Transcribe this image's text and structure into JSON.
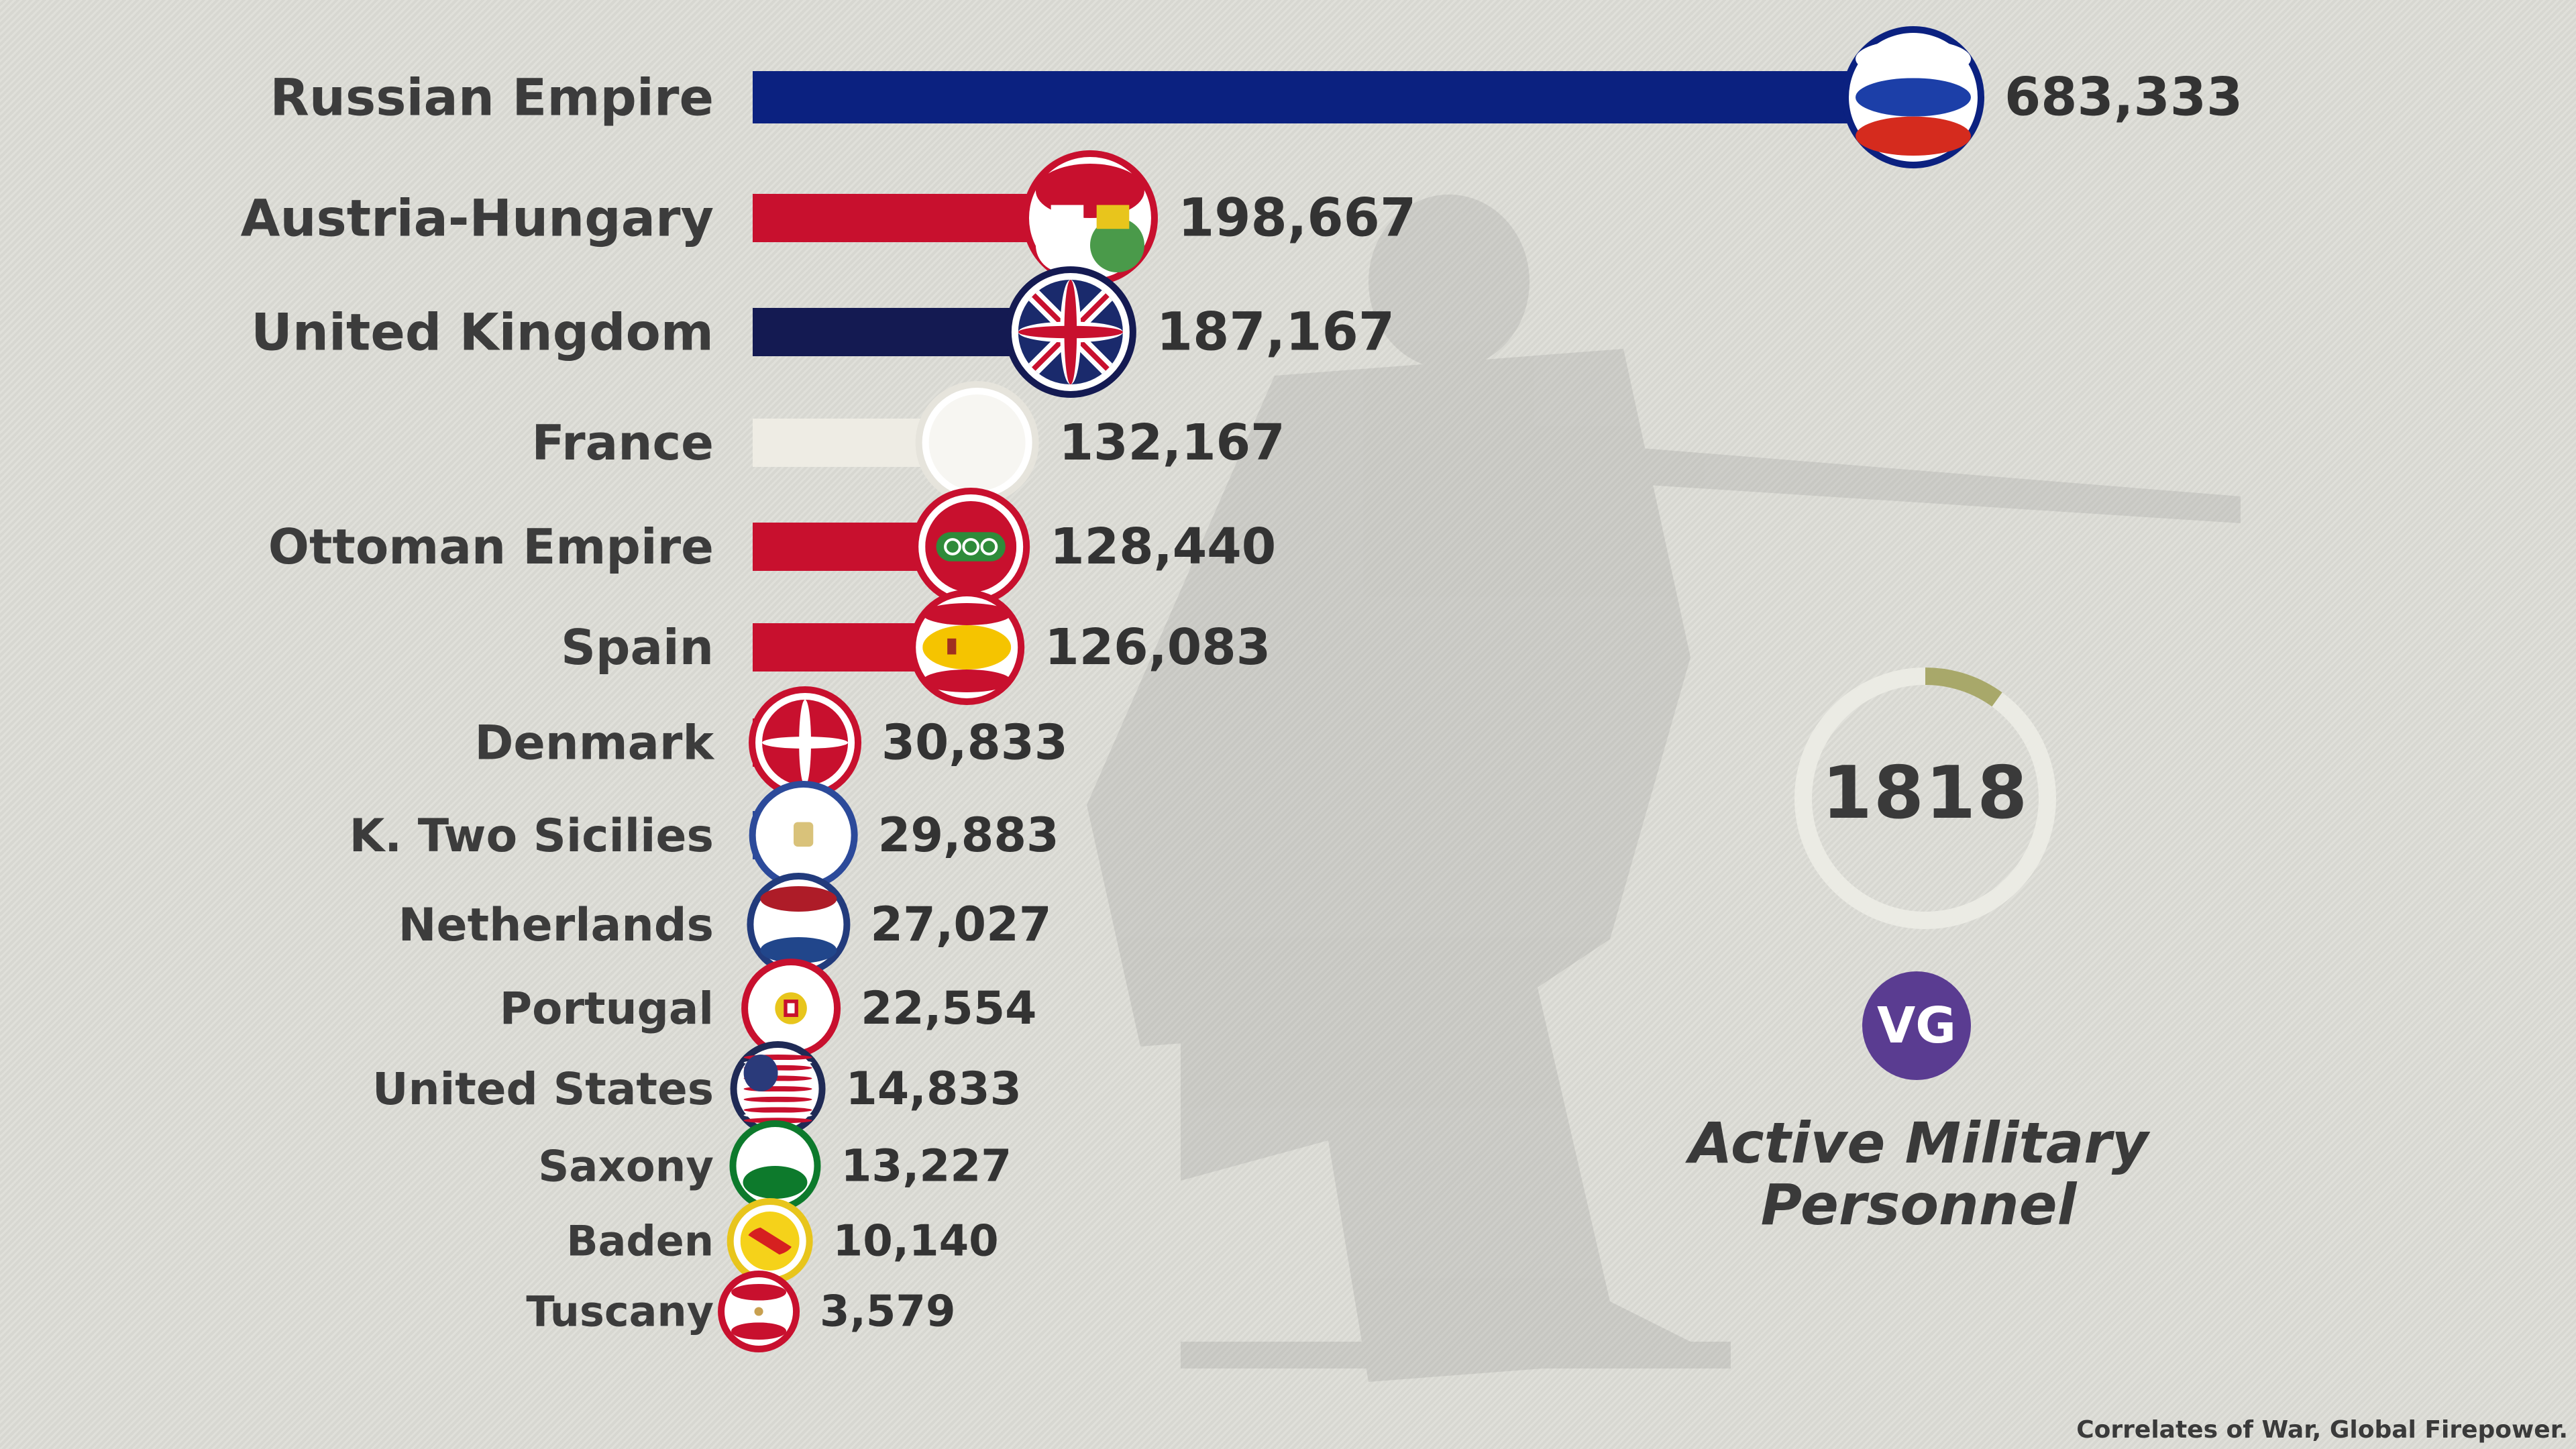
{
  "chart_data": {
    "type": "bar",
    "orientation": "horizontal",
    "categories": [
      "Russian Empire",
      "Austria-Hungary",
      "United Kingdom",
      "France",
      "Ottoman Empire",
      "Spain",
      "Denmark",
      "K. Two Sicilies",
      "Netherlands",
      "Portugal",
      "United States",
      "Saxony",
      "Baden",
      "Tuscany"
    ],
    "values": [
      683333,
      198667,
      187167,
      132167,
      128440,
      126083,
      30833,
      29883,
      27027,
      22554,
      14833,
      13227,
      10140,
      3579
    ],
    "value_labels": [
      "683,333",
      "198,667",
      "187,167",
      "132,167",
      "128,440",
      "126,083",
      "30,833",
      "29,883",
      "27,027",
      "22,554",
      "14,833",
      "13,227",
      "10,140",
      "3,579"
    ],
    "bar_colors": [
      "#0b2180",
      "#c8102e",
      "#141a52",
      "#eeece4",
      "#c8102e",
      "#c8102e",
      "#c8102e",
      "#2c4a9a",
      "#223b7c",
      "#c8102e",
      "#1f2a55",
      "#0d7a2c",
      "#e8c51c",
      "#c8102e"
    ],
    "flags": [
      "russia-flag",
      "austria-hungary-flag",
      "united-kingdom-flag",
      "france-flag",
      "ottoman-flag",
      "spain-flag",
      "denmark-flag",
      "two-sicilies-flag",
      "netherlands-flag",
      "portugal-flag",
      "united-states-flag",
      "saxony-flag",
      "baden-flag",
      "tuscany-flag"
    ],
    "title": "Active Military Personnel",
    "year": "1818",
    "year_progress": 0.1,
    "source": "Correlates of War, Global Firepower.",
    "xlabel": "",
    "ylabel": ""
  },
  "logo_text": "VG",
  "colors": {
    "background": "#dcdcd6",
    "text": "#3a3a3a",
    "logo": "#5a3c91",
    "progress": "#a8a86a"
  }
}
